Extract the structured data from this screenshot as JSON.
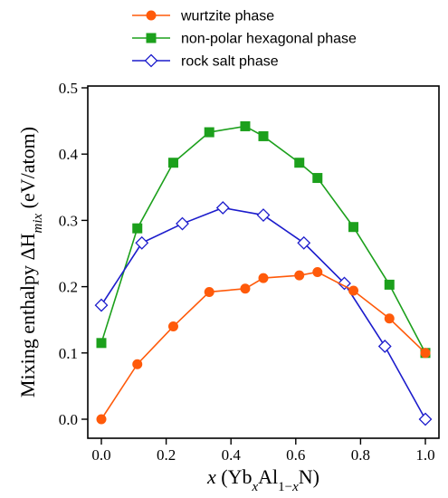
{
  "chart_data": {
    "type": "line",
    "xlim": [
      0.0,
      1.0
    ],
    "ylim": [
      0.0,
      0.5
    ],
    "x_ticks": [
      "0.0",
      "0.2",
      "0.4",
      "0.6",
      "0.8",
      "1.0"
    ],
    "y_ticks": [
      "0.0",
      "0.1",
      "0.2",
      "0.3",
      "0.4",
      "0.5"
    ],
    "xlabel": {
      "parts": [
        {
          "text": "x",
          "style": "italic"
        },
        {
          "text": " (Yb",
          "style": "normal"
        },
        {
          "text": "x",
          "style": "italic-sub"
        },
        {
          "text": "Al",
          "style": "normal"
        },
        {
          "text": "1−",
          "style": "sub"
        },
        {
          "text": "x",
          "style": "italic-sub"
        },
        {
          "text": "N)",
          "style": "normal"
        }
      ]
    },
    "ylabel": {
      "parts": [
        {
          "text": "Mixing enthalpy ΔH",
          "style": "normal"
        },
        {
          "text": "mix",
          "style": "italic-sub"
        },
        {
          "text": " (eV/atom)",
          "style": "normal"
        }
      ]
    },
    "grid": false,
    "legend_position": "top",
    "series": [
      {
        "name": "wurtzite phase",
        "color": "#ff5a0a",
        "marker": "circle",
        "x": [
          0.0,
          0.111,
          0.222,
          0.333,
          0.444,
          0.5,
          0.611,
          0.667,
          0.778,
          0.889,
          1.0
        ],
        "y": [
          0.0,
          0.083,
          0.14,
          0.192,
          0.197,
          0.213,
          0.217,
          0.222,
          0.194,
          0.152,
          0.1
        ]
      },
      {
        "name": "non-polar hexagonal phase",
        "color": "#1ca01c",
        "marker": "square",
        "x": [
          0.0,
          0.111,
          0.222,
          0.333,
          0.444,
          0.5,
          0.611,
          0.667,
          0.778,
          0.889,
          1.0
        ],
        "y": [
          0.115,
          0.288,
          0.387,
          0.433,
          0.442,
          0.427,
          0.387,
          0.364,
          0.29,
          0.203,
          0.1
        ]
      },
      {
        "name": "rock salt phase",
        "color": "#1c1ccc",
        "marker": "diamond-open",
        "x": [
          0.0,
          0.125,
          0.25,
          0.375,
          0.5,
          0.625,
          0.75,
          0.875,
          1.0
        ],
        "y": [
          0.172,
          0.266,
          0.295,
          0.319,
          0.308,
          0.266,
          0.205,
          0.11,
          0.0
        ]
      }
    ]
  }
}
